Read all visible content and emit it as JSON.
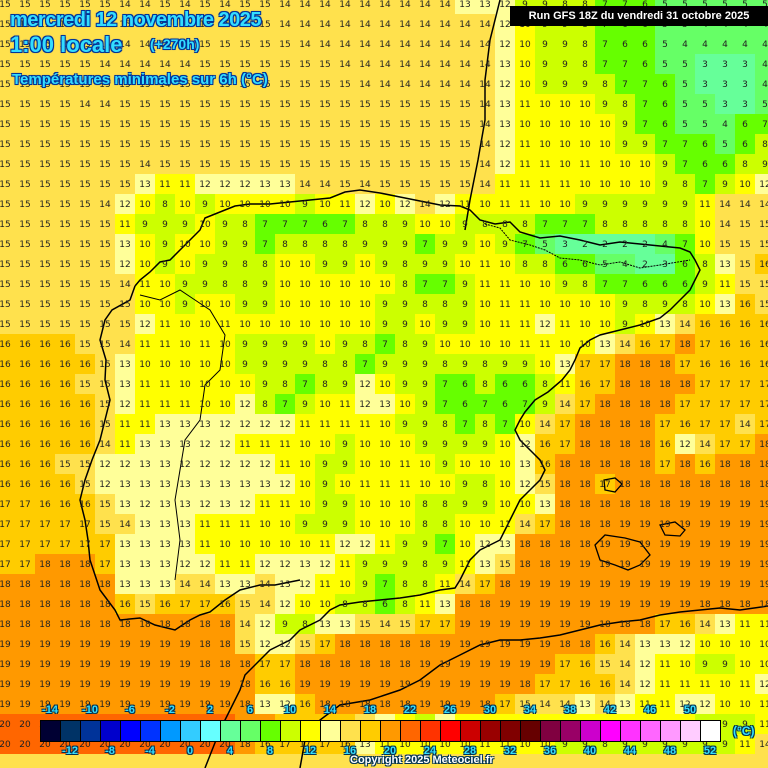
{
  "header": {
    "date": "mercredi 12 novembre 2025",
    "time": "1:00 locale",
    "lead": "(+270h)",
    "parameter": "Températures minimales sur 6h (°C)",
    "run": "Run GFS 18Z du vendredi 31 octobre 2025"
  },
  "footer": {
    "copyright": "Copyright 2025 Meteociel.fr",
    "unit": "(°C)"
  },
  "colorbar": {
    "colors": [
      "#000033",
      "#003366",
      "#003399",
      "#0000cc",
      "#0000ff",
      "#0033ff",
      "#0099ff",
      "#33ccff",
      "#66ffff",
      "#66ff99",
      "#66ff66",
      "#66ff00",
      "#ccff00",
      "#ffff00",
      "#ffff99",
      "#ffe14d",
      "#ffcc00",
      "#ff9900",
      "#ff6600",
      "#ff3300",
      "#ff0000",
      "#cc0000",
      "#990000",
      "#800000",
      "#660000",
      "#800040",
      "#990066",
      "#cc00cc",
      "#ff00ff",
      "#ff33ff",
      "#ff66ff",
      "#ff99ff",
      "#ffccff",
      "#ffffff"
    ],
    "top_labels": [
      "-14",
      "-10",
      "-6",
      "-2",
      "2",
      "6",
      "10",
      "14",
      "18",
      "22",
      "26",
      "30",
      "34",
      "38",
      "42",
      "46",
      "50"
    ],
    "bottom_labels": [
      "-12",
      "-8",
      "-4",
      "0",
      "4",
      "8",
      "12",
      "16",
      "20",
      "24",
      "28",
      "32",
      "36",
      "40",
      "44",
      "48",
      "52"
    ]
  },
  "chart_data": {
    "type": "heatmap",
    "title": "Températures minimales sur 6h (°C)",
    "subtitle": "mercredi 12 novembre 2025 1:00 locale (+270h) — Run GFS 18Z du vendredi 31 octobre 2025",
    "units": "°C",
    "grid_spacing_px": 20,
    "value_range": [
      -16,
      52
    ],
    "grid": [
      [
        15,
        15,
        15,
        15,
        15,
        15,
        14,
        14,
        15,
        14,
        15,
        14,
        15,
        15,
        14,
        14,
        14,
        14,
        14,
        14,
        14,
        14,
        14,
        13,
        13,
        12,
        9,
        9,
        8,
        8,
        7,
        7,
        6,
        5,
        5,
        5,
        5,
        5,
        5
      ],
      [
        15,
        15,
        15,
        15,
        15,
        15,
        15,
        15,
        15,
        15,
        15,
        15,
        15,
        15,
        14,
        14,
        14,
        14,
        14,
        14,
        14,
        14,
        14,
        14,
        14,
        12,
        10,
        9,
        9,
        8,
        7,
        6,
        6,
        5,
        5,
        4,
        4,
        4,
        4
      ],
      [
        15,
        15,
        15,
        15,
        15,
        15,
        14,
        14,
        15,
        15,
        15,
        15,
        15,
        15,
        15,
        14,
        14,
        14,
        14,
        14,
        14,
        14,
        14,
        14,
        14,
        12,
        10,
        9,
        9,
        8,
        7,
        6,
        6,
        5,
        4,
        4,
        4,
        4,
        4
      ],
      [
        15,
        15,
        15,
        15,
        15,
        14,
        14,
        14,
        14,
        14,
        15,
        15,
        15,
        15,
        15,
        15,
        15,
        14,
        14,
        14,
        14,
        14,
        14,
        14,
        14,
        13,
        10,
        9,
        9,
        8,
        7,
        7,
        6,
        5,
        5,
        3,
        3,
        3,
        4
      ],
      [
        15,
        15,
        15,
        15,
        15,
        15,
        15,
        15,
        14,
        15,
        15,
        15,
        15,
        15,
        15,
        15,
        15,
        15,
        14,
        14,
        14,
        14,
        14,
        14,
        14,
        12,
        10,
        9,
        9,
        9,
        8,
        7,
        7,
        6,
        5,
        3,
        3,
        3,
        4
      ],
      [
        15,
        15,
        15,
        15,
        14,
        14,
        15,
        15,
        15,
        15,
        15,
        15,
        15,
        15,
        15,
        15,
        15,
        15,
        15,
        15,
        15,
        15,
        15,
        15,
        14,
        13,
        11,
        10,
        10,
        10,
        9,
        8,
        7,
        6,
        5,
        5,
        3,
        3,
        5
      ],
      [
        15,
        15,
        15,
        15,
        15,
        15,
        15,
        15,
        15,
        15,
        15,
        15,
        15,
        15,
        15,
        15,
        15,
        15,
        15,
        15,
        15,
        15,
        15,
        15,
        14,
        13,
        10,
        10,
        10,
        10,
        10,
        9,
        7,
        6,
        5,
        5,
        4,
        6,
        7
      ],
      [
        15,
        15,
        15,
        15,
        15,
        15,
        15,
        15,
        15,
        15,
        15,
        15,
        15,
        15,
        15,
        15,
        15,
        15,
        15,
        15,
        15,
        15,
        15,
        15,
        14,
        12,
        11,
        10,
        10,
        10,
        10,
        9,
        9,
        7,
        7,
        6,
        5,
        6,
        8
      ],
      [
        15,
        15,
        15,
        15,
        15,
        15,
        15,
        14,
        15,
        15,
        15,
        15,
        15,
        15,
        15,
        15,
        15,
        15,
        15,
        15,
        15,
        15,
        15,
        15,
        14,
        12,
        11,
        11,
        10,
        11,
        10,
        10,
        10,
        9,
        7,
        6,
        6,
        8,
        9
      ],
      [
        15,
        15,
        15,
        15,
        15,
        15,
        15,
        13,
        11,
        11,
        12,
        12,
        12,
        13,
        13,
        14,
        14,
        15,
        14,
        15,
        15,
        15,
        15,
        15,
        14,
        11,
        11,
        11,
        11,
        10,
        10,
        10,
        10,
        9,
        8,
        7,
        9,
        10,
        12
      ],
      [
        15,
        15,
        15,
        15,
        15,
        14,
        12,
        10,
        8,
        10,
        9,
        10,
        10,
        10,
        10,
        9,
        10,
        11,
        12,
        10,
        12,
        14,
        12,
        11,
        10,
        11,
        11,
        10,
        10,
        9,
        9,
        9,
        9,
        9,
        9,
        11,
        14,
        14,
        14
      ],
      [
        15,
        15,
        15,
        15,
        15,
        15,
        11,
        9,
        9,
        9,
        10,
        9,
        8,
        7,
        7,
        7,
        6,
        7,
        8,
        8,
        9,
        10,
        10,
        9,
        8,
        8,
        8,
        7,
        7,
        7,
        8,
        8,
        8,
        8,
        8,
        10,
        14,
        15,
        15
      ],
      [
        15,
        15,
        15,
        15,
        15,
        15,
        13,
        10,
        9,
        10,
        10,
        9,
        9,
        7,
        8,
        8,
        8,
        8,
        9,
        9,
        9,
        7,
        9,
        9,
        10,
        9,
        7,
        5,
        3,
        2,
        2,
        2,
        2,
        4,
        7,
        10,
        15,
        15,
        15
      ],
      [
        15,
        15,
        15,
        15,
        15,
        15,
        12,
        10,
        9,
        10,
        9,
        9,
        8,
        8,
        10,
        10,
        9,
        9,
        10,
        9,
        8,
        9,
        9,
        10,
        11,
        10,
        8,
        8,
        6,
        6,
        5,
        4,
        2,
        3,
        6,
        8,
        13,
        15,
        16
      ],
      [
        15,
        15,
        15,
        15,
        15,
        15,
        14,
        11,
        10,
        9,
        9,
        8,
        8,
        9,
        10,
        10,
        10,
        10,
        10,
        10,
        8,
        7,
        7,
        9,
        11,
        11,
        10,
        10,
        9,
        8,
        7,
        7,
        6,
        6,
        6,
        9,
        11,
        15,
        15
      ],
      [
        15,
        15,
        15,
        15,
        15,
        15,
        15,
        10,
        10,
        9,
        10,
        10,
        9,
        9,
        10,
        10,
        10,
        10,
        10,
        9,
        9,
        8,
        8,
        9,
        10,
        11,
        11,
        10,
        10,
        10,
        10,
        9,
        8,
        9,
        8,
        10,
        13,
        16,
        15
      ],
      [
        15,
        15,
        15,
        15,
        15,
        15,
        15,
        12,
        11,
        10,
        10,
        11,
        10,
        10,
        10,
        10,
        10,
        10,
        10,
        9,
        9,
        10,
        9,
        9,
        10,
        11,
        11,
        12,
        11,
        10,
        10,
        9,
        10,
        13,
        14,
        16,
        16,
        16,
        16
      ],
      [
        16,
        16,
        16,
        16,
        15,
        15,
        14,
        11,
        11,
        10,
        11,
        10,
        9,
        9,
        9,
        9,
        10,
        9,
        8,
        7,
        8,
        9,
        10,
        10,
        10,
        10,
        11,
        11,
        10,
        10,
        13,
        14,
        16,
        17,
        18,
        17,
        16,
        16,
        16
      ],
      [
        16,
        16,
        16,
        16,
        16,
        15,
        13,
        10,
        10,
        10,
        10,
        10,
        9,
        9,
        9,
        9,
        8,
        8,
        7,
        9,
        9,
        9,
        8,
        9,
        8,
        9,
        9,
        10,
        13,
        17,
        17,
        18,
        18,
        18,
        17,
        16,
        16,
        16,
        16
      ],
      [
        16,
        16,
        16,
        16,
        15,
        15,
        13,
        11,
        11,
        10,
        10,
        10,
        10,
        9,
        8,
        7,
        8,
        9,
        12,
        10,
        9,
        9,
        7,
        6,
        8,
        6,
        6,
        8,
        11,
        16,
        17,
        18,
        18,
        18,
        18,
        17,
        17,
        17,
        17
      ],
      [
        16,
        16,
        16,
        16,
        16,
        15,
        12,
        11,
        11,
        11,
        10,
        10,
        12,
        8,
        7,
        9,
        10,
        11,
        12,
        13,
        10,
        9,
        7,
        6,
        7,
        6,
        7,
        9,
        14,
        17,
        18,
        18,
        18,
        18,
        17,
        17,
        17,
        17,
        17
      ],
      [
        16,
        16,
        16,
        16,
        16,
        15,
        11,
        11,
        13,
        13,
        13,
        12,
        12,
        12,
        12,
        11,
        11,
        11,
        11,
        10,
        9,
        9,
        8,
        7,
        8,
        7,
        10,
        14,
        17,
        18,
        18,
        18,
        18,
        17,
        16,
        17,
        17,
        14,
        17
      ],
      [
        16,
        16,
        16,
        16,
        16,
        14,
        11,
        13,
        13,
        13,
        12,
        12,
        11,
        11,
        11,
        10,
        10,
        9,
        10,
        10,
        10,
        9,
        9,
        9,
        9,
        10,
        12,
        16,
        17,
        18,
        18,
        18,
        18,
        16,
        12,
        14,
        17,
        17,
        18
      ],
      [
        16,
        16,
        16,
        15,
        15,
        12,
        12,
        13,
        13,
        12,
        12,
        12,
        12,
        12,
        11,
        10,
        9,
        9,
        10,
        10,
        11,
        10,
        9,
        10,
        10,
        10,
        13,
        16,
        18,
        18,
        18,
        18,
        18,
        17,
        18,
        16,
        18,
        18,
        18
      ],
      [
        16,
        16,
        16,
        16,
        15,
        12,
        13,
        13,
        13,
        13,
        13,
        13,
        13,
        13,
        12,
        10,
        9,
        10,
        11,
        11,
        11,
        10,
        10,
        9,
        8,
        10,
        12,
        15,
        18,
        18,
        17,
        18,
        18,
        18,
        18,
        18,
        18,
        18,
        18
      ],
      [
        17,
        17,
        16,
        16,
        16,
        15,
        13,
        12,
        13,
        13,
        12,
        13,
        12,
        11,
        11,
        10,
        9,
        9,
        10,
        10,
        10,
        8,
        8,
        9,
        9,
        10,
        10,
        13,
        18,
        18,
        18,
        18,
        18,
        18,
        19,
        19,
        19,
        19,
        19
      ],
      [
        17,
        17,
        17,
        17,
        17,
        15,
        14,
        13,
        13,
        13,
        11,
        11,
        11,
        10,
        10,
        9,
        9,
        9,
        10,
        10,
        10,
        8,
        8,
        10,
        10,
        11,
        14,
        17,
        18,
        18,
        18,
        19,
        19,
        19,
        19,
        19,
        19,
        19,
        19
      ],
      [
        17,
        17,
        17,
        17,
        17,
        17,
        13,
        13,
        13,
        13,
        11,
        10,
        10,
        10,
        10,
        10,
        11,
        12,
        12,
        11,
        9,
        9,
        7,
        10,
        12,
        13,
        18,
        18,
        18,
        18,
        19,
        19,
        19,
        19,
        19,
        19,
        19,
        19,
        19
      ],
      [
        17,
        17,
        18,
        18,
        18,
        17,
        13,
        13,
        13,
        12,
        12,
        11,
        11,
        12,
        12,
        13,
        12,
        11,
        9,
        9,
        9,
        8,
        9,
        11,
        13,
        15,
        18,
        18,
        19,
        19,
        19,
        19,
        19,
        19,
        19,
        19,
        19,
        19,
        19
      ],
      [
        18,
        18,
        18,
        18,
        18,
        18,
        13,
        13,
        13,
        14,
        14,
        13,
        13,
        14,
        13,
        12,
        11,
        10,
        9,
        7,
        8,
        8,
        11,
        14,
        17,
        18,
        19,
        19,
        19,
        19,
        19,
        19,
        19,
        19,
        19,
        19,
        19,
        19,
        19
      ],
      [
        18,
        18,
        18,
        18,
        18,
        18,
        16,
        15,
        16,
        17,
        17,
        16,
        15,
        14,
        12,
        10,
        10,
        8,
        8,
        6,
        8,
        11,
        13,
        18,
        18,
        19,
        19,
        19,
        19,
        19,
        19,
        19,
        19,
        19,
        19,
        18,
        18,
        18,
        18
      ],
      [
        18,
        18,
        18,
        18,
        18,
        18,
        18,
        18,
        18,
        18,
        18,
        18,
        14,
        12,
        9,
        8,
        13,
        13,
        15,
        14,
        15,
        17,
        17,
        19,
        19,
        19,
        19,
        19,
        19,
        19,
        18,
        18,
        18,
        17,
        16,
        14,
        13,
        11,
        11
      ],
      [
        19,
        19,
        19,
        19,
        19,
        19,
        19,
        19,
        19,
        19,
        18,
        18,
        15,
        12,
        12,
        15,
        17,
        18,
        18,
        18,
        18,
        18,
        19,
        19,
        19,
        19,
        19,
        19,
        18,
        18,
        16,
        14,
        13,
        13,
        12,
        10,
        10,
        10,
        10
      ],
      [
        19,
        19,
        19,
        19,
        19,
        19,
        19,
        19,
        19,
        19,
        18,
        18,
        18,
        17,
        17,
        18,
        18,
        18,
        18,
        18,
        18,
        19,
        19,
        19,
        19,
        19,
        19,
        19,
        17,
        16,
        15,
        14,
        12,
        11,
        10,
        9,
        9,
        10,
        10
      ],
      [
        19,
        19,
        19,
        19,
        19,
        19,
        19,
        19,
        19,
        19,
        19,
        19,
        18,
        16,
        16,
        19,
        19,
        19,
        19,
        19,
        19,
        19,
        19,
        19,
        19,
        19,
        18,
        17,
        17,
        16,
        16,
        14,
        12,
        11,
        11,
        11,
        10,
        11,
        12
      ],
      [
        19,
        19,
        19,
        19,
        19,
        19,
        19,
        19,
        19,
        19,
        19,
        19,
        18,
        13,
        12,
        16,
        18,
        18,
        18,
        18,
        18,
        19,
        19,
        19,
        18,
        17,
        15,
        14,
        14,
        13,
        14,
        13,
        11,
        11,
        12,
        12,
        10,
        10,
        11
      ],
      [
        20,
        20,
        20,
        20,
        20,
        20,
        20,
        20,
        20,
        20,
        20,
        20,
        18,
        18,
        17,
        17,
        17,
        16,
        14,
        12,
        10,
        9,
        12,
        11,
        11,
        10,
        10,
        11,
        11,
        11,
        10,
        10,
        10,
        10,
        10,
        8,
        9,
        9,
        11
      ],
      [
        20,
        20,
        20,
        20,
        20,
        20,
        20,
        20,
        20,
        20,
        20,
        20,
        18,
        16,
        17,
        17,
        17,
        16,
        13,
        11,
        10,
        10,
        10,
        10,
        11,
        11,
        10,
        10,
        9,
        9,
        8,
        9,
        9,
        9,
        9,
        9,
        9,
        11,
        14
      ]
    ]
  }
}
